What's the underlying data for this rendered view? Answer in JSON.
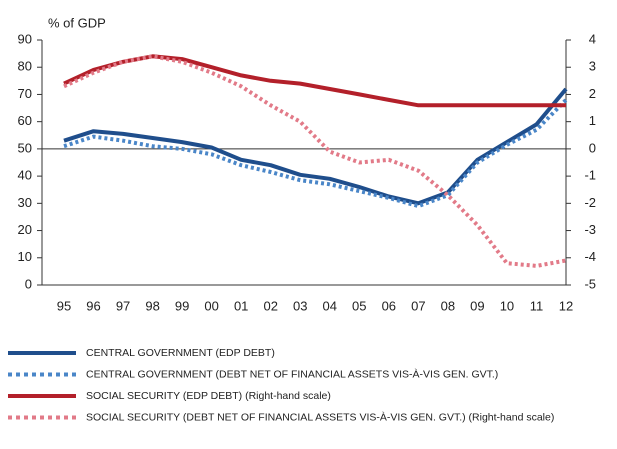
{
  "chart_data": {
    "type": "line",
    "y_label": "% of GDP",
    "categories": [
      "95",
      "96",
      "97",
      "98",
      "99",
      "00",
      "01",
      "02",
      "03",
      "04",
      "05",
      "06",
      "07",
      "08",
      "09",
      "10",
      "11",
      "12"
    ],
    "ylim": [
      0,
      90
    ],
    "yticks": [
      0,
      10,
      20,
      30,
      40,
      50,
      60,
      70,
      80,
      90
    ],
    "y2lim": [
      -5,
      4
    ],
    "y2ticks": [
      -5,
      -4,
      -3,
      -2,
      -1,
      0,
      1,
      2,
      3,
      4
    ],
    "series": [
      {
        "name": "CENTRAL GOVERNMENT (EDP DEBT)",
        "color": "#1f4e8c",
        "dash": false,
        "values": [
          53,
          56.5,
          55.5,
          54,
          52.5,
          50.5,
          46,
          44,
          40.5,
          39,
          36,
          32.5,
          30,
          34,
          46,
          52.5,
          59,
          72
        ]
      },
      {
        "name": "CENTRAL GOVERNMENT (DEBT NET OF FINANCIAL ASSETS VIS-À-VIS GEN. GVT.)",
        "color": "#4a86c8",
        "dash": true,
        "values": [
          51,
          54.5,
          53,
          51,
          50,
          48,
          44,
          41.5,
          38.5,
          37,
          34.5,
          32,
          29,
          33,
          45,
          51.5,
          57,
          68
        ]
      },
      {
        "name": "SOCIAL SECURITY (EDP DEBT) (Right-hand scale)",
        "color": "#b3202a",
        "dash": false,
        "axis": "y2",
        "values": [
          2.4,
          2.9,
          3.2,
          3.4,
          3.3,
          3.0,
          2.7,
          2.5,
          2.4,
          2.2,
          2.0,
          1.8,
          1.6,
          1.6,
          1.6,
          1.6,
          1.6,
          1.6
        ]
      },
      {
        "name": "SOCIAL SECURITY (DEBT NET OF FINANCIAL ASSETS VIS-À-VIS GEN. GVT.) (Right-hand scale)",
        "color": "#e27a88",
        "dash": true,
        "axis": "y2",
        "values": [
          2.3,
          2.8,
          3.2,
          3.4,
          3.2,
          2.8,
          2.3,
          1.6,
          1.0,
          -0.1,
          -0.5,
          -0.4,
          -0.8,
          -1.7,
          -2.8,
          -4.2,
          -4.3,
          -4.1
        ]
      }
    ]
  }
}
